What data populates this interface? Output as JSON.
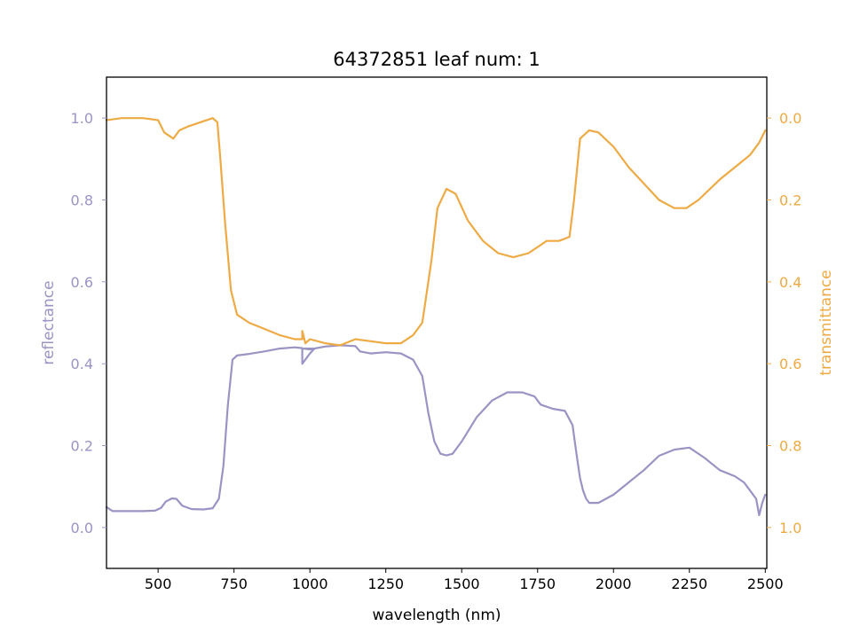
{
  "chart_data": {
    "type": "line",
    "title": "64372851 leaf num: 1",
    "xlabel": "wavelength (nm)",
    "ylabel_left": "reflectance",
    "ylabel_right": "transmittance",
    "xlim": [
      330,
      2505
    ],
    "ylim_left": [
      -0.1,
      1.1
    ],
    "ylim_right": [
      1.1,
      -0.1
    ],
    "right_axis_inverted": true,
    "grid": false,
    "x_ticks": [
      500,
      750,
      1000,
      1250,
      1500,
      1750,
      2000,
      2250,
      2500
    ],
    "y_ticks_left": [
      0.0,
      0.2,
      0.4,
      0.6,
      0.8,
      1.0
    ],
    "y_ticks_right": [
      0.0,
      0.2,
      0.4,
      0.6,
      0.8,
      1.0
    ],
    "colors": {
      "reflectance": "#9a94c4",
      "transmittance": "#eeaa44"
    },
    "series": [
      {
        "name": "reflectance",
        "axis": "left",
        "points": [
          [
            330,
            0.05
          ],
          [
            350,
            0.04
          ],
          [
            400,
            0.04
          ],
          [
            450,
            0.04
          ],
          [
            490,
            0.041
          ],
          [
            510,
            0.048
          ],
          [
            525,
            0.063
          ],
          [
            545,
            0.071
          ],
          [
            560,
            0.07
          ],
          [
            580,
            0.053
          ],
          [
            610,
            0.045
          ],
          [
            650,
            0.044
          ],
          [
            680,
            0.047
          ],
          [
            700,
            0.07
          ],
          [
            715,
            0.15
          ],
          [
            730,
            0.3
          ],
          [
            745,
            0.41
          ],
          [
            760,
            0.42
          ],
          [
            800,
            0.424
          ],
          [
            850,
            0.43
          ],
          [
            900,
            0.437
          ],
          [
            950,
            0.44
          ],
          [
            975,
            0.438
          ],
          [
            975,
            0.4
          ],
          [
            1000,
            0.425
          ],
          [
            1015,
            0.437
          ],
          [
            980,
            0.437
          ],
          [
            1000,
            0.435
          ],
          [
            1050,
            0.442
          ],
          [
            1100,
            0.445
          ],
          [
            1150,
            0.443
          ],
          [
            1165,
            0.43
          ],
          [
            1200,
            0.425
          ],
          [
            1250,
            0.428
          ],
          [
            1300,
            0.425
          ],
          [
            1340,
            0.41
          ],
          [
            1370,
            0.37
          ],
          [
            1390,
            0.28
          ],
          [
            1410,
            0.21
          ],
          [
            1430,
            0.18
          ],
          [
            1450,
            0.176
          ],
          [
            1470,
            0.18
          ],
          [
            1500,
            0.21
          ],
          [
            1550,
            0.27
          ],
          [
            1600,
            0.31
          ],
          [
            1650,
            0.33
          ],
          [
            1700,
            0.33
          ],
          [
            1740,
            0.32
          ],
          [
            1760,
            0.3
          ],
          [
            1800,
            0.29
          ],
          [
            1840,
            0.285
          ],
          [
            1865,
            0.25
          ],
          [
            1880,
            0.17
          ],
          [
            1890,
            0.12
          ],
          [
            1900,
            0.09
          ],
          [
            1910,
            0.07
          ],
          [
            1920,
            0.06
          ],
          [
            1950,
            0.06
          ],
          [
            2000,
            0.08
          ],
          [
            2050,
            0.11
          ],
          [
            2100,
            0.14
          ],
          [
            2150,
            0.175
          ],
          [
            2200,
            0.19
          ],
          [
            2250,
            0.195
          ],
          [
            2300,
            0.17
          ],
          [
            2350,
            0.14
          ],
          [
            2400,
            0.125
          ],
          [
            2430,
            0.11
          ],
          [
            2450,
            0.09
          ],
          [
            2470,
            0.07
          ],
          [
            2480,
            0.03
          ],
          [
            2490,
            0.06
          ],
          [
            2500,
            0.08
          ]
        ]
      },
      {
        "name": "transmittance",
        "axis": "right",
        "points": [
          [
            330,
            0.005
          ],
          [
            380,
            0.0
          ],
          [
            450,
            0.0
          ],
          [
            500,
            0.005
          ],
          [
            520,
            0.035
          ],
          [
            550,
            0.05
          ],
          [
            570,
            0.03
          ],
          [
            600,
            0.02
          ],
          [
            640,
            0.01
          ],
          [
            680,
            0.0
          ],
          [
            695,
            0.01
          ],
          [
            705,
            0.1
          ],
          [
            720,
            0.25
          ],
          [
            740,
            0.42
          ],
          [
            760,
            0.48
          ],
          [
            800,
            0.5
          ],
          [
            850,
            0.515
          ],
          [
            900,
            0.53
          ],
          [
            950,
            0.54
          ],
          [
            975,
            0.54
          ],
          [
            975,
            0.52
          ],
          [
            985,
            0.55
          ],
          [
            1000,
            0.54
          ],
          [
            1050,
            0.55
          ],
          [
            1100,
            0.555
          ],
          [
            1150,
            0.54
          ],
          [
            1200,
            0.545
          ],
          [
            1250,
            0.55
          ],
          [
            1300,
            0.55
          ],
          [
            1340,
            0.53
          ],
          [
            1370,
            0.5
          ],
          [
            1400,
            0.35
          ],
          [
            1420,
            0.22
          ],
          [
            1450,
            0.173
          ],
          [
            1480,
            0.185
          ],
          [
            1520,
            0.25
          ],
          [
            1570,
            0.3
          ],
          [
            1620,
            0.33
          ],
          [
            1670,
            0.34
          ],
          [
            1720,
            0.33
          ],
          [
            1780,
            0.3
          ],
          [
            1820,
            0.3
          ],
          [
            1855,
            0.29
          ],
          [
            1870,
            0.2
          ],
          [
            1890,
            0.05
          ],
          [
            1905,
            0.04
          ],
          [
            1920,
            0.03
          ],
          [
            1950,
            0.035
          ],
          [
            2000,
            0.07
          ],
          [
            2050,
            0.12
          ],
          [
            2100,
            0.16
          ],
          [
            2150,
            0.2
          ],
          [
            2200,
            0.22
          ],
          [
            2240,
            0.22
          ],
          [
            2280,
            0.2
          ],
          [
            2350,
            0.15
          ],
          [
            2400,
            0.12
          ],
          [
            2450,
            0.09
          ],
          [
            2480,
            0.06
          ],
          [
            2500,
            0.03
          ]
        ]
      }
    ]
  }
}
